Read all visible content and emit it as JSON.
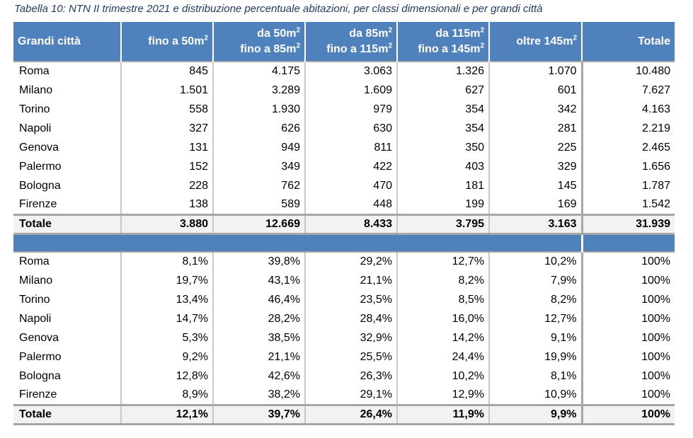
{
  "caption": "Tabella 10: NTN II trimestre 2021 e distribuzione percentuale abitazioni, per classi dimensionali e per grandi città",
  "header": {
    "city": "Grandi città",
    "c1": "fino a 50m",
    "c2a": "da 50m",
    "c2b": "fino a 85m",
    "c3a": "da 85m",
    "c3b": "fino a 115m",
    "c4a": "da 115m",
    "c4b": "fino a 145m",
    "c5": "oltre 145m",
    "sup": "2",
    "total": "Totale"
  },
  "ntn_rows": [
    [
      "Roma",
      "845",
      "4.175",
      "3.063",
      "1.326",
      "1.070",
      "10.480"
    ],
    [
      "Milano",
      "1.501",
      "3.289",
      "1.609",
      "627",
      "601",
      "7.627"
    ],
    [
      "Torino",
      "558",
      "1.930",
      "979",
      "354",
      "342",
      "4.163"
    ],
    [
      "Napoli",
      "327",
      "626",
      "630",
      "354",
      "281",
      "2.219"
    ],
    [
      "Genova",
      "131",
      "949",
      "811",
      "350",
      "225",
      "2.465"
    ],
    [
      "Palermo",
      "152",
      "349",
      "422",
      "403",
      "329",
      "1.656"
    ],
    [
      "Bologna",
      "228",
      "762",
      "470",
      "181",
      "145",
      "1.787"
    ],
    [
      "Firenze",
      "138",
      "589",
      "448",
      "199",
      "169",
      "1.542"
    ]
  ],
  "ntn_total": [
    "Totale",
    "3.880",
    "12.669",
    "8.433",
    "3.795",
    "3.163",
    "31.939"
  ],
  "pct_rows": [
    [
      "Roma",
      "8,1%",
      "39,8%",
      "29,2%",
      "12,7%",
      "10,2%",
      "100%"
    ],
    [
      "Milano",
      "19,7%",
      "43,1%",
      "21,1%",
      "8,2%",
      "7,9%",
      "100%"
    ],
    [
      "Torino",
      "13,4%",
      "46,4%",
      "23,5%",
      "8,5%",
      "8,2%",
      "100%"
    ],
    [
      "Napoli",
      "14,7%",
      "28,2%",
      "28,4%",
      "16,0%",
      "12,7%",
      "100%"
    ],
    [
      "Genova",
      "5,3%",
      "38,5%",
      "32,9%",
      "14,2%",
      "9,1%",
      "100%"
    ],
    [
      "Palermo",
      "9,2%",
      "21,1%",
      "25,5%",
      "24,4%",
      "19,9%",
      "100%"
    ],
    [
      "Bologna",
      "12,8%",
      "42,6%",
      "26,3%",
      "10,2%",
      "8,1%",
      "100%"
    ],
    [
      "Firenze",
      "8,9%",
      "38,2%",
      "29,1%",
      "12,9%",
      "10,9%",
      "100%"
    ]
  ],
  "pct_total": [
    "Totale",
    "12,1%",
    "39,7%",
    "26,4%",
    "11,9%",
    "9,9%",
    "100%"
  ],
  "colors": {
    "header_bg": "#4f81bd",
    "caption_text": "#1f3b66",
    "total_row_bg": "#f2f2f2"
  }
}
